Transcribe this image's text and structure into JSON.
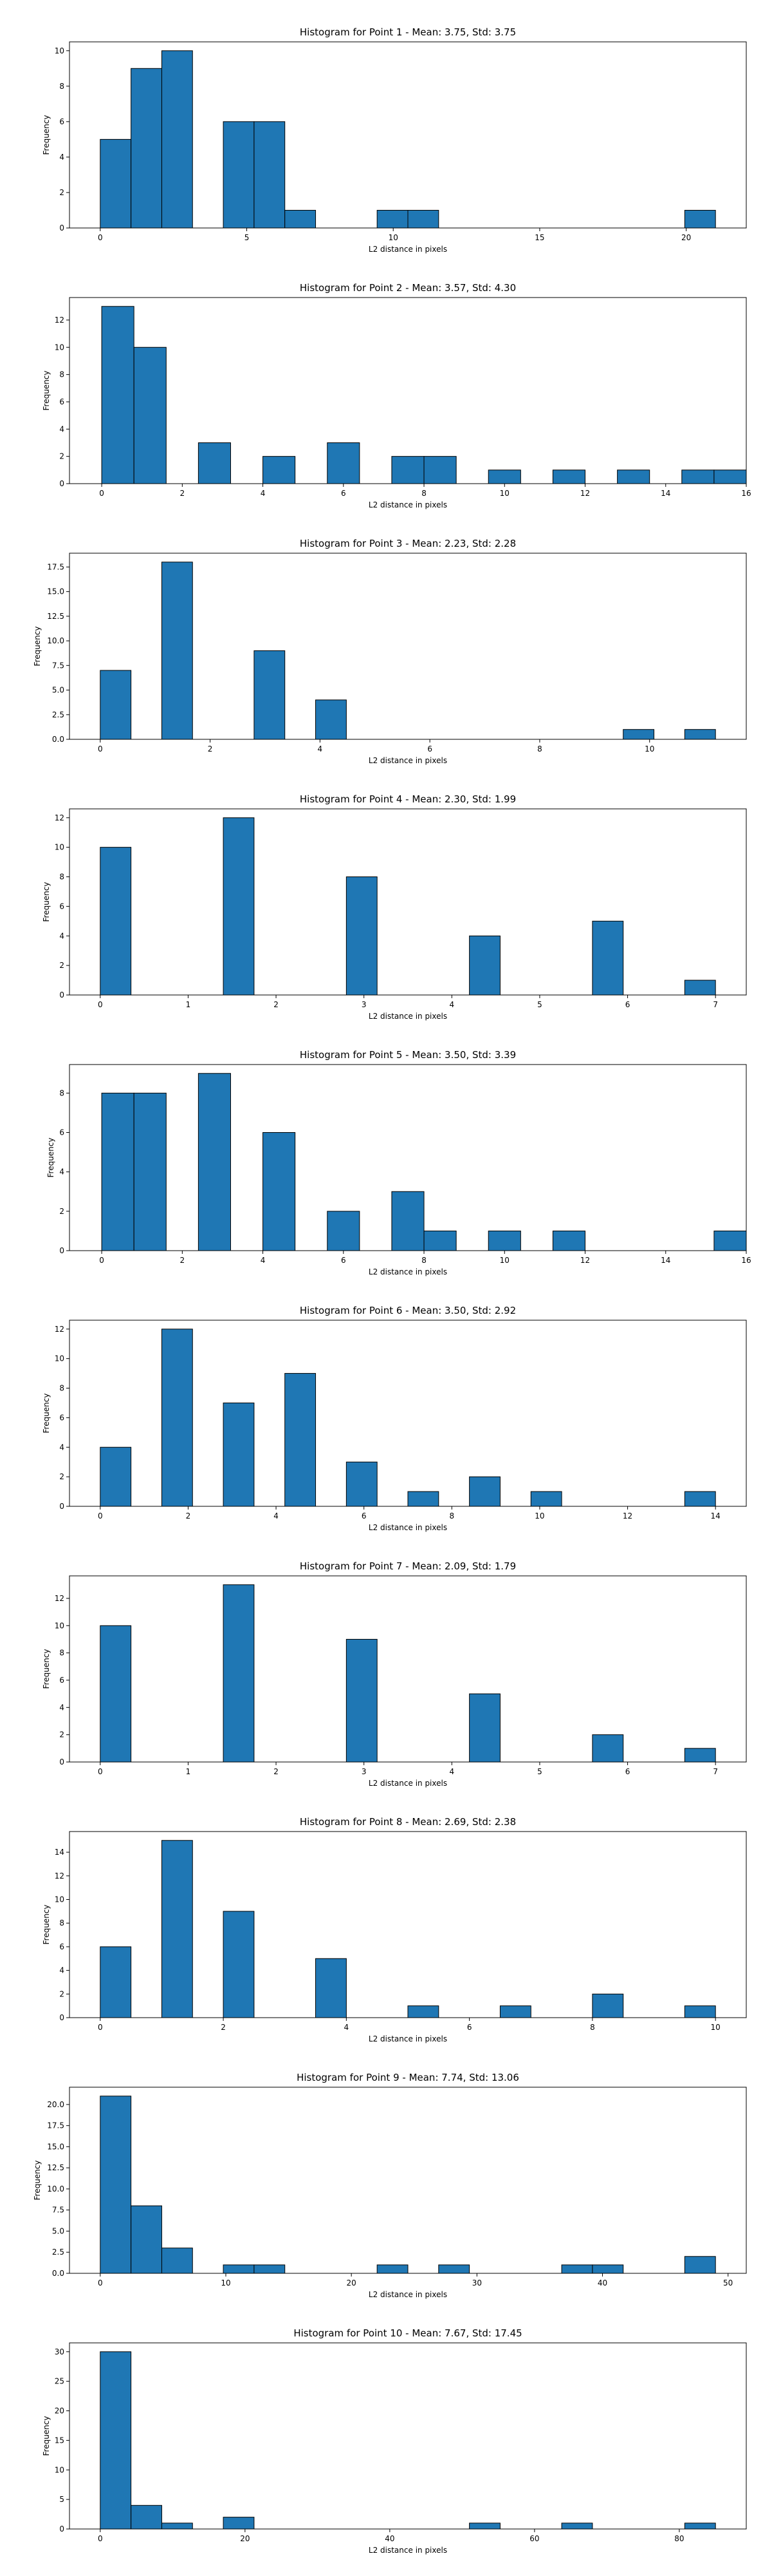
{
  "chart_data": [
    {
      "type": "bar",
      "title": "Histogram for Point 1 - Mean: 3.75, Std: 3.75",
      "xlabel": "L2 distance in pixels",
      "ylabel": "Frequency",
      "xlim": [
        -1.05,
        22.05
      ],
      "ylim": [
        0,
        10.5
      ],
      "xticks": [
        0,
        5,
        10,
        15,
        20
      ],
      "yticks": [
        0,
        2,
        4,
        6,
        8,
        10
      ],
      "tick_labels_x": [
        "0",
        "5",
        "10",
        "15",
        "20"
      ],
      "tick_labels_y": [
        "0",
        "2",
        "4",
        "6",
        "8",
        "10"
      ],
      "bins": [
        [
          0,
          1.05
        ],
        [
          1.05,
          2.1
        ],
        [
          2.1,
          3.15
        ],
        [
          4.2,
          5.25
        ],
        [
          5.25,
          6.3
        ],
        [
          6.3,
          7.35
        ],
        [
          9.45,
          10.5
        ],
        [
          10.5,
          11.55
        ],
        [
          19.95,
          21.0
        ]
      ],
      "values": [
        5,
        9,
        10,
        6,
        6,
        1,
        1,
        1,
        1
      ],
      "grid": false
    },
    {
      "type": "bar",
      "title": "Histogram for Point 2 - Mean: 3.57, Std: 4.30",
      "xlabel": "L2 distance in pixels",
      "ylabel": "Frequency",
      "xlim": [
        -0.8,
        16.0
      ],
      "ylim": [
        0,
        13.65
      ],
      "xticks": [
        0,
        2,
        4,
        6,
        8,
        10,
        12,
        14,
        16
      ],
      "yticks": [
        0,
        2,
        4,
        6,
        8,
        10,
        12
      ],
      "tick_labels_x": [
        "0",
        "2",
        "4",
        "6",
        "8",
        "10",
        "12",
        "14",
        "16"
      ],
      "tick_labels_y": [
        "0",
        "2",
        "4",
        "6",
        "8",
        "10",
        "12"
      ],
      "bins": [
        [
          0,
          0.8
        ],
        [
          0.8,
          1.6
        ],
        [
          2.4,
          3.2
        ],
        [
          4.0,
          4.8
        ],
        [
          5.6,
          6.4
        ],
        [
          7.2,
          8.0
        ],
        [
          8.0,
          8.8
        ],
        [
          9.6,
          10.4
        ],
        [
          11.2,
          12.0
        ],
        [
          12.8,
          13.6
        ],
        [
          14.4,
          15.2
        ],
        [
          15.2,
          16.0
        ]
      ],
      "values": [
        13,
        10,
        3,
        2,
        3,
        2,
        2,
        1,
        1,
        1,
        1,
        1
      ],
      "grid": false
    },
    {
      "type": "bar",
      "title": "Histogram for Point 3 - Mean: 2.23, Std: 2.28",
      "xlabel": "L2 distance in pixels",
      "ylabel": "Frequency",
      "xlim": [
        -0.56,
        11.76
      ],
      "ylim": [
        0,
        18.9
      ],
      "xticks": [
        0,
        2,
        4,
        6,
        8,
        10
      ],
      "yticks": [
        0,
        2.5,
        5,
        7.5,
        10,
        12.5,
        15,
        17.5
      ],
      "tick_labels_x": [
        "0",
        "2",
        "4",
        "6",
        "8",
        "10"
      ],
      "tick_labels_y": [
        "0.0",
        "2.5",
        "5.0",
        "7.5",
        "10.0",
        "12.5",
        "15.0",
        "17.5"
      ],
      "bins": [
        [
          0,
          0.56
        ],
        [
          1.12,
          1.68
        ],
        [
          2.8,
          3.36
        ],
        [
          3.92,
          4.48
        ],
        [
          9.52,
          10.08
        ],
        [
          10.64,
          11.2
        ]
      ],
      "values": [
        7,
        18,
        9,
        4,
        1,
        1
      ],
      "grid": false
    },
    {
      "type": "bar",
      "title": "Histogram for Point 4 - Mean: 2.30, Std: 1.99",
      "xlabel": "L2 distance in pixels",
      "ylabel": "Frequency",
      "xlim": [
        -0.35,
        7.35
      ],
      "ylim": [
        0,
        12.6
      ],
      "xticks": [
        0,
        1,
        2,
        3,
        4,
        5,
        6,
        7
      ],
      "yticks": [
        0,
        2,
        4,
        6,
        8,
        10,
        12
      ],
      "tick_labels_x": [
        "0",
        "1",
        "2",
        "3",
        "4",
        "5",
        "6",
        "7"
      ],
      "tick_labels_y": [
        "0",
        "2",
        "4",
        "6",
        "8",
        "10",
        "12"
      ],
      "bins": [
        [
          0,
          0.35
        ],
        [
          1.4,
          1.75
        ],
        [
          2.8,
          3.15
        ],
        [
          4.2,
          4.55
        ],
        [
          5.6,
          5.95
        ],
        [
          6.65,
          7.0
        ]
      ],
      "values": [
        10,
        12,
        8,
        4,
        5,
        1
      ],
      "grid": false
    },
    {
      "type": "bar",
      "title": "Histogram for Point 5 - Mean: 3.50, Std: 3.39",
      "xlabel": "L2 distance in pixels",
      "ylabel": "Frequency",
      "xlim": [
        -0.8,
        16.0
      ],
      "ylim": [
        0,
        9.45
      ],
      "xticks": [
        0,
        2,
        4,
        6,
        8,
        10,
        12,
        14,
        16
      ],
      "yticks": [
        0,
        2,
        4,
        6,
        8
      ],
      "tick_labels_x": [
        "0",
        "2",
        "4",
        "6",
        "8",
        "10",
        "12",
        "14",
        "16"
      ],
      "tick_labels_y": [
        "0",
        "2",
        "4",
        "6",
        "8"
      ],
      "bins": [
        [
          0,
          0.8
        ],
        [
          0.8,
          1.6
        ],
        [
          2.4,
          3.2
        ],
        [
          4.0,
          4.8
        ],
        [
          5.6,
          6.4
        ],
        [
          7.2,
          8.0
        ],
        [
          8.0,
          8.8
        ],
        [
          9.6,
          10.4
        ],
        [
          11.2,
          12.0
        ],
        [
          15.2,
          16.0
        ]
      ],
      "values": [
        8,
        8,
        9,
        6,
        2,
        3,
        1,
        1,
        1,
        1
      ],
      "grid": false
    },
    {
      "type": "bar",
      "title": "Histogram for Point 6 - Mean: 3.50, Std: 2.92",
      "xlabel": "L2 distance in pixels",
      "ylabel": "Frequency",
      "xlim": [
        -0.7,
        14.7
      ],
      "ylim": [
        0,
        12.6
      ],
      "xticks": [
        0,
        2,
        4,
        6,
        8,
        10,
        12,
        14
      ],
      "yticks": [
        0,
        2,
        4,
        6,
        8,
        10,
        12
      ],
      "tick_labels_x": [
        "0",
        "2",
        "4",
        "6",
        "8",
        "10",
        "12",
        "14"
      ],
      "tick_labels_y": [
        "0",
        "2",
        "4",
        "6",
        "8",
        "10",
        "12"
      ],
      "bins": [
        [
          0,
          0.7
        ],
        [
          1.4,
          2.1
        ],
        [
          2.8,
          3.5
        ],
        [
          4.2,
          4.9
        ],
        [
          5.6,
          6.3
        ],
        [
          7.0,
          7.7
        ],
        [
          8.4,
          9.1
        ],
        [
          9.8,
          10.5
        ],
        [
          13.3,
          14.0
        ]
      ],
      "values": [
        4,
        12,
        7,
        9,
        3,
        1,
        2,
        1,
        1
      ],
      "grid": false
    },
    {
      "type": "bar",
      "title": "Histogram for Point 7 - Mean: 2.09, Std: 1.79",
      "xlabel": "L2 distance in pixels",
      "ylabel": "Frequency",
      "xlim": [
        -0.35,
        7.35
      ],
      "ylim": [
        0,
        13.65
      ],
      "xticks": [
        0,
        1,
        2,
        3,
        4,
        5,
        6,
        7
      ],
      "yticks": [
        0,
        2,
        4,
        6,
        8,
        10,
        12
      ],
      "tick_labels_x": [
        "0",
        "1",
        "2",
        "3",
        "4",
        "5",
        "6",
        "7"
      ],
      "tick_labels_y": [
        "0",
        "2",
        "4",
        "6",
        "8",
        "10",
        "12"
      ],
      "bins": [
        [
          0,
          0.35
        ],
        [
          1.4,
          1.75
        ],
        [
          2.8,
          3.15
        ],
        [
          4.2,
          4.55
        ],
        [
          5.6,
          5.95
        ],
        [
          6.65,
          7.0
        ]
      ],
      "values": [
        10,
        13,
        9,
        5,
        2,
        1
      ],
      "grid": false
    },
    {
      "type": "bar",
      "title": "Histogram for Point 8 - Mean: 2.69, Std: 2.38",
      "xlabel": "L2 distance in pixels",
      "ylabel": "Frequency",
      "xlim": [
        -0.5,
        10.5
      ],
      "ylim": [
        0,
        15.75
      ],
      "xticks": [
        0,
        2,
        4,
        6,
        8,
        10
      ],
      "yticks": [
        0,
        2,
        4,
        6,
        8,
        10,
        12,
        14
      ],
      "tick_labels_x": [
        "0",
        "2",
        "4",
        "6",
        "8",
        "10"
      ],
      "tick_labels_y": [
        "0",
        "2",
        "4",
        "6",
        "8",
        "10",
        "12",
        "14"
      ],
      "bins": [
        [
          0,
          0.5
        ],
        [
          1.0,
          1.5
        ],
        [
          2.0,
          2.5
        ],
        [
          3.5,
          4.0
        ],
        [
          5.0,
          5.5
        ],
        [
          6.5,
          7.0
        ],
        [
          8.0,
          8.5
        ],
        [
          9.5,
          10.0
        ]
      ],
      "values": [
        6,
        15,
        9,
        5,
        1,
        1,
        2,
        1
      ],
      "grid": false
    },
    {
      "type": "bar",
      "title": "Histogram for Point 9 - Mean: 7.74, Std: 13.06",
      "xlabel": "L2 distance in pixels",
      "ylabel": "Frequency",
      "xlim": [
        -2.45,
        51.45
      ],
      "ylim": [
        0,
        22.05
      ],
      "xticks": [
        0,
        10,
        20,
        30,
        40,
        50
      ],
      "yticks": [
        0,
        2.5,
        5,
        7.5,
        10,
        12.5,
        15,
        17.5,
        20
      ],
      "tick_labels_x": [
        "0",
        "10",
        "20",
        "30",
        "40",
        "50"
      ],
      "tick_labels_y": [
        "0.0",
        "2.5",
        "5.0",
        "7.5",
        "10.0",
        "12.5",
        "15.0",
        "17.5",
        "20.0"
      ],
      "bins": [
        [
          0,
          2.45
        ],
        [
          2.45,
          4.9
        ],
        [
          4.9,
          7.35
        ],
        [
          9.8,
          12.25
        ],
        [
          12.25,
          14.7
        ],
        [
          22.05,
          24.5
        ],
        [
          26.95,
          29.4
        ],
        [
          36.75,
          39.2
        ],
        [
          39.2,
          41.65
        ],
        [
          46.55,
          49.0
        ]
      ],
      "values": [
        21,
        8,
        3,
        1,
        1,
        1,
        1,
        1,
        1,
        2
      ],
      "grid": false
    },
    {
      "type": "bar",
      "title": "Histogram for Point 10 - Mean: 7.67, Std: 17.45",
      "xlabel": "L2 distance in pixels",
      "ylabel": "Frequency",
      "xlim": [
        -4.25,
        89.25
      ],
      "ylim": [
        0,
        31.5
      ],
      "xticks": [
        0,
        20,
        40,
        60,
        80
      ],
      "yticks": [
        0,
        5,
        10,
        15,
        20,
        25,
        30
      ],
      "tick_labels_x": [
        "0",
        "20",
        "40",
        "60",
        "80"
      ],
      "tick_labels_y": [
        "0",
        "5",
        "10",
        "15",
        "20",
        "25",
        "30"
      ],
      "bins": [
        [
          0,
          4.25
        ],
        [
          4.25,
          8.5
        ],
        [
          8.5,
          12.75
        ],
        [
          17.0,
          21.25
        ],
        [
          51.0,
          55.25
        ],
        [
          63.75,
          68.0
        ],
        [
          80.75,
          85.0
        ]
      ],
      "values": [
        30,
        4,
        1,
        2,
        1,
        1,
        1
      ],
      "grid": false
    }
  ]
}
